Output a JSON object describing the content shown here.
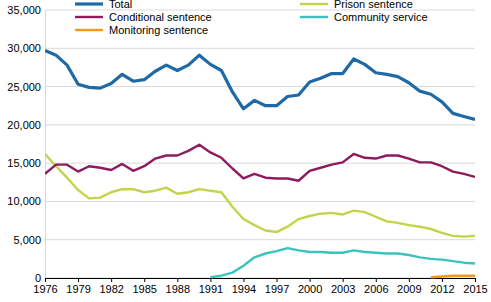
{
  "chart_data": {
    "type": "line",
    "x": [
      1976,
      1977,
      1978,
      1979,
      1980,
      1981,
      1982,
      1983,
      1984,
      1985,
      1986,
      1987,
      1988,
      1989,
      1990,
      1991,
      1992,
      1993,
      1994,
      1995,
      1996,
      1997,
      1998,
      1999,
      2000,
      2001,
      2002,
      2003,
      2004,
      2005,
      2006,
      2007,
      2008,
      2009,
      2010,
      2011,
      2012,
      2013,
      2014,
      2015
    ],
    "xlim": [
      1976,
      2015
    ],
    "xticks": [
      1976,
      1979,
      1982,
      1985,
      1988,
      1991,
      1994,
      1997,
      2000,
      2003,
      2006,
      2009,
      2012,
      2015
    ],
    "ylim": [
      0,
      35000
    ],
    "yticks": [
      0,
      {
        "value": 5000,
        "label": "5,000"
      },
      {
        "value": 10000,
        "label": "10,000"
      },
      {
        "value": 15000,
        "label": "15,000"
      },
      {
        "value": 20000,
        "label": "20,000"
      },
      {
        "value": 25000,
        "label": "25,000"
      },
      {
        "value": 30000,
        "label": "30,000"
      },
      {
        "value": 35000,
        "label": "35,000"
      }
    ],
    "grid": true,
    "legend": "top",
    "series": [
      {
        "name": "Total",
        "color": "#1f6aa6",
        "values": [
          29700,
          29100,
          27800,
          25300,
          24900,
          24800,
          25400,
          26600,
          25700,
          25900,
          27000,
          27800,
          27100,
          27800,
          29100,
          27900,
          27100,
          24300,
          22100,
          23200,
          22500,
          22500,
          23700,
          23900,
          25600,
          26100,
          26700,
          26700,
          28600,
          27900,
          26800,
          26600,
          26300,
          25500,
          24400,
          24000,
          23000,
          21500,
          21100,
          20700
        ]
      },
      {
        "name": "Prison sentence",
        "color": "#c3d44a",
        "values": [
          16200,
          14600,
          13100,
          11500,
          10400,
          10500,
          11200,
          11600,
          11600,
          11200,
          11400,
          11800,
          11000,
          11200,
          11600,
          11400,
          11200,
          9300,
          7700,
          6900,
          6200,
          6000,
          6700,
          7700,
          8100,
          8400,
          8500,
          8300,
          8800,
          8600,
          8000,
          7400,
          7200,
          6900,
          6700,
          6400,
          5900,
          5500,
          5400,
          5500
        ]
      },
      {
        "name": "Conditional sentence",
        "color": "#8e1b5c",
        "values": [
          13600,
          14800,
          14800,
          13900,
          14600,
          14400,
          14100,
          14900,
          14000,
          14600,
          15600,
          16000,
          16000,
          16600,
          17400,
          16400,
          15700,
          14300,
          13000,
          13600,
          13100,
          13000,
          13000,
          12700,
          14000,
          14400,
          14800,
          15100,
          16200,
          15700,
          15600,
          16000,
          16000,
          15600,
          15100,
          15100,
          14600,
          13900,
          13600,
          13200
        ]
      },
      {
        "name": "Community service",
        "color": "#3cc3bf",
        "values": [
          null,
          null,
          null,
          null,
          null,
          null,
          null,
          null,
          null,
          null,
          null,
          null,
          null,
          null,
          null,
          100,
          300,
          700,
          1600,
          2700,
          3200,
          3500,
          3900,
          3600,
          3400,
          3400,
          3300,
          3300,
          3600,
          3400,
          3300,
          3200,
          3200,
          3000,
          2700,
          2500,
          2400,
          2200,
          2000,
          1900
        ]
      },
      {
        "name": "Monitoring sentence",
        "color": "#f39a1c",
        "values": [
          null,
          null,
          null,
          null,
          null,
          null,
          null,
          null,
          null,
          null,
          null,
          null,
          null,
          null,
          null,
          null,
          null,
          null,
          null,
          null,
          null,
          null,
          null,
          null,
          null,
          null,
          null,
          null,
          null,
          null,
          null,
          null,
          null,
          null,
          null,
          100,
          200,
          300,
          300,
          300
        ]
      }
    ]
  }
}
